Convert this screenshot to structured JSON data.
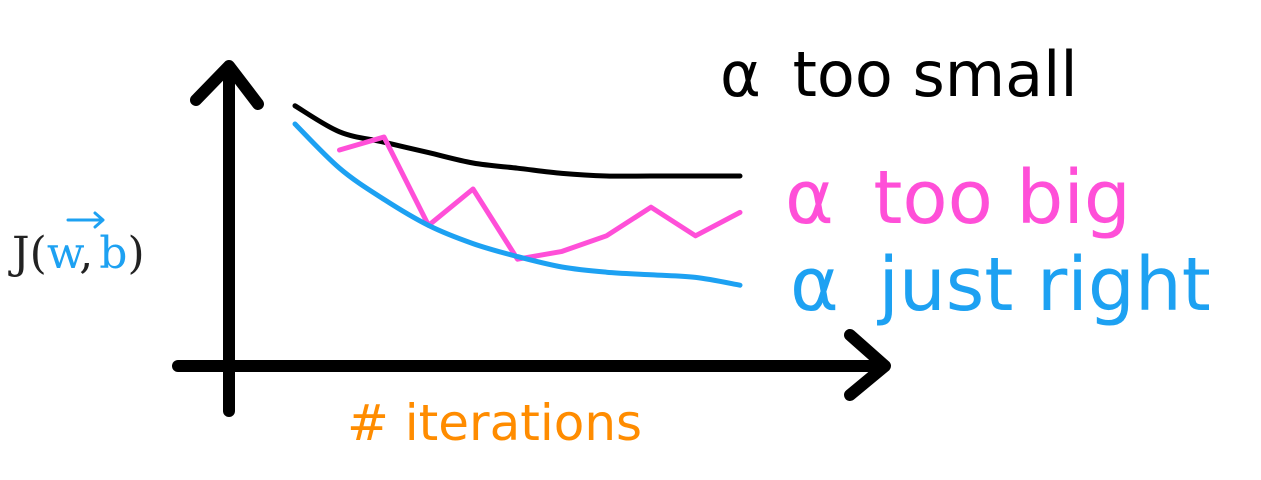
{
  "chart_data": {
    "type": "line",
    "xlabel": "# iterations",
    "ylabel": {
      "prefix": "J(",
      "w": "w",
      "sep": ",",
      "b": "b",
      "suffix": ")"
    },
    "x": [
      0,
      1,
      2,
      3,
      4,
      5,
      6,
      7,
      8,
      9,
      10
    ],
    "series": [
      {
        "name": "α too small",
        "label_alpha": "α",
        "label_text": "too small",
        "color": "#000000",
        "values": [
          9.2,
          8.2,
          7.8,
          7.4,
          7.0,
          6.8,
          6.6,
          6.5,
          6.5,
          6.5,
          6.5
        ]
      },
      {
        "name": "α too big",
        "label_alpha": "α",
        "label_text": "too big",
        "color": "#ff4fd8",
        "values": [
          null,
          7.5,
          8.0,
          4.6,
          6.0,
          3.3,
          3.6,
          4.2,
          5.3,
          4.2,
          5.1
        ]
      },
      {
        "name": "α just right",
        "label_alpha": "α",
        "label_text": "just right",
        "color": "#1da1f2",
        "values": [
          8.5,
          6.8,
          5.6,
          4.6,
          3.9,
          3.4,
          3.0,
          2.8,
          2.7,
          2.6,
          2.3
        ]
      }
    ],
    "colors": {
      "axis": "#000000",
      "ylabel_main": "#222222",
      "ylabel_vars": "#1da1f2",
      "xlabel": "#ff8c00"
    }
  }
}
